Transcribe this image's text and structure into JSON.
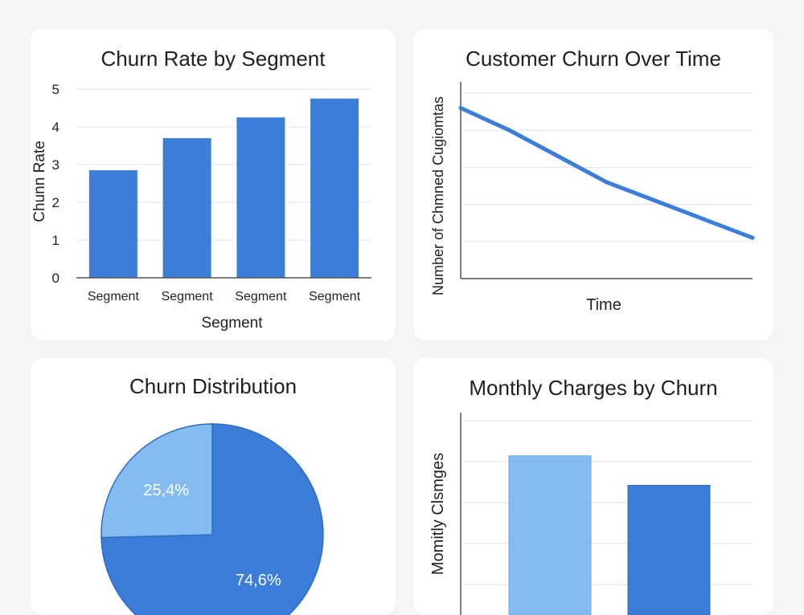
{
  "colors": {
    "primary": "#3b7dd8",
    "light": "#84bcf2",
    "grid": "#e3e3e3",
    "axis": "#555555",
    "pie_label": "#ffffff"
  },
  "chart_data": [
    {
      "id": "churn-by-segment",
      "type": "bar",
      "title": "Churn Rate by Segment",
      "xlabel": "Segment",
      "ylabel": "Chunn Rate",
      "categories": [
        "Segment",
        "Segment",
        "Segment",
        "Segment"
      ],
      "values": [
        2.85,
        3.7,
        4.25,
        4.75
      ],
      "ylim": [
        0,
        5
      ],
      "yticks": [
        0,
        1,
        2,
        3,
        4,
        5
      ],
      "grid": true
    },
    {
      "id": "churn-over-time",
      "type": "line",
      "title": "Customer Churn Over Time",
      "xlabel": "Time",
      "ylabel": "Number of Chmned Cugiomtas",
      "x": [
        0,
        1,
        2,
        3,
        4,
        5,
        6
      ],
      "y": [
        4.6,
        4.0,
        3.3,
        2.6,
        2.1,
        1.6,
        1.1
      ],
      "ylim": [
        0,
        5
      ],
      "grid": true
    },
    {
      "id": "churn-distribution",
      "type": "pie",
      "title": "Churn Distribution",
      "slices": [
        {
          "label": "74,6%",
          "value": 74.6,
          "color": "#3b7dd8"
        },
        {
          "label": "25,4%",
          "value": 25.4,
          "color": "#84bcf2"
        }
      ]
    },
    {
      "id": "monthly-charges-by-churn",
      "type": "bar",
      "title": "Monthly Charges by Churn",
      "ylabel": "Momitly Clsmges",
      "values": [
        74.5,
        61.5
      ],
      "colors": [
        "#84bcf2",
        "#3b7dd8"
      ],
      "ylim": [
        0,
        90
      ],
      "grid": true
    }
  ]
}
